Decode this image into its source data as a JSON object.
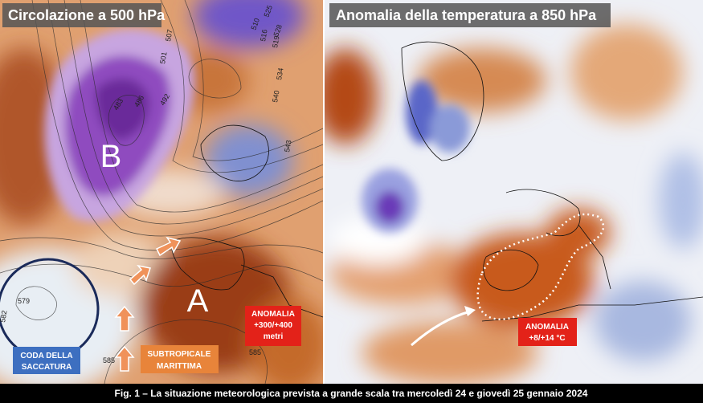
{
  "left_panel": {
    "title": "Circolazione a 500 hPa",
    "low_label": "B",
    "high_label": "A",
    "anomaly_box": {
      "line1": "ANOMALIA",
      "line2": "+300/+400",
      "line3": "metri"
    },
    "trough_box": {
      "line1": "CODA DELLA",
      "line2": "SACCATURA"
    },
    "air_mass_box": {
      "line1": "SUBTROPICALE",
      "line2": "MARITTIMA"
    },
    "contour_labels": [
      "579",
      "582",
      "585",
      "585",
      "483",
      "486",
      "492",
      "501",
      "507",
      "510",
      "516",
      "519",
      "525",
      "528",
      "534",
      "540",
      "543"
    ]
  },
  "right_panel": {
    "title": "Anomalia della temperatura a 850 hPa",
    "anomaly_box": {
      "line1": "ANOMALIA",
      "line2": "+8/+14 °C"
    }
  },
  "caption": "Fig. 1 – La situazione meteorologica prevista a grande scala tra mercoledì 24 e giovedì 25 gennaio 2024"
}
